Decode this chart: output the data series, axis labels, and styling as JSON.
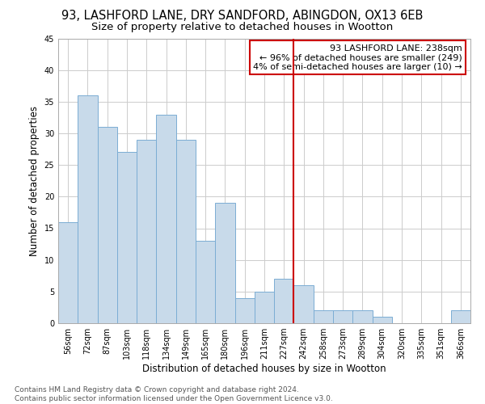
{
  "title": "93, LASHFORD LANE, DRY SANDFORD, ABINGDON, OX13 6EB",
  "subtitle": "Size of property relative to detached houses in Wootton",
  "xlabel": "Distribution of detached houses by size in Wootton",
  "ylabel": "Number of detached properties",
  "bar_color": "#c8daea",
  "bar_edge_color": "#7badd4",
  "bin_labels": [
    "56sqm",
    "72sqm",
    "87sqm",
    "103sqm",
    "118sqm",
    "134sqm",
    "149sqm",
    "165sqm",
    "180sqm",
    "196sqm",
    "211sqm",
    "227sqm",
    "242sqm",
    "258sqm",
    "273sqm",
    "289sqm",
    "304sqm",
    "320sqm",
    "335sqm",
    "351sqm",
    "366sqm"
  ],
  "bar_heights": [
    16,
    36,
    31,
    27,
    29,
    33,
    29,
    13,
    19,
    4,
    5,
    7,
    6,
    2,
    2,
    2,
    1,
    0,
    0,
    0,
    2
  ],
  "vline_color": "#cc0000",
  "annotation_title": "93 LASHFORD LANE: 238sqm",
  "annotation_line1": "← 96% of detached houses are smaller (249)",
  "annotation_line2": "4% of semi-detached houses are larger (10) →",
  "ylim": [
    0,
    45
  ],
  "yticks": [
    0,
    5,
    10,
    15,
    20,
    25,
    30,
    35,
    40,
    45
  ],
  "footer_line1": "Contains HM Land Registry data © Crown copyright and database right 2024.",
  "footer_line2": "Contains public sector information licensed under the Open Government Licence v3.0.",
  "bg_color": "#ffffff",
  "grid_color": "#cccccc",
  "title_fontsize": 10.5,
  "subtitle_fontsize": 9.5,
  "axis_label_fontsize": 8.5,
  "tick_fontsize": 7,
  "annotation_fontsize": 8,
  "footer_fontsize": 6.5
}
